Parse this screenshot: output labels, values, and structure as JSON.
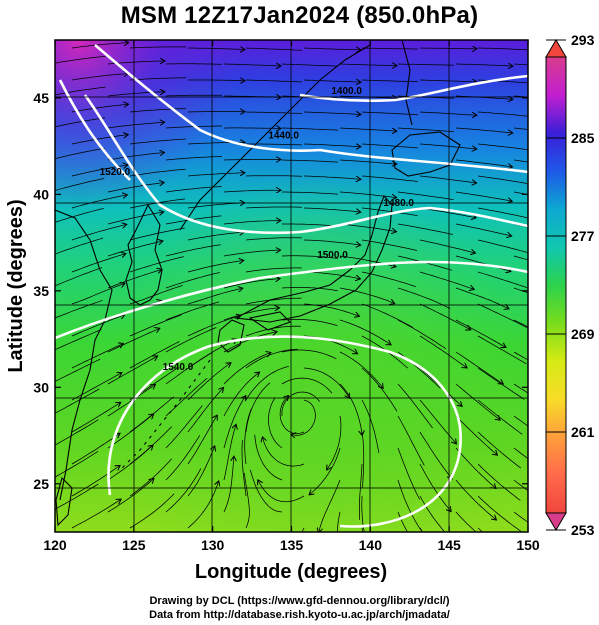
{
  "title": "MSM 12Z17Jan2024 (850.0hPa)",
  "map": {
    "x_axis": {
      "label": "Longitude (degrees)",
      "range": [
        120,
        150
      ],
      "ticks": [
        "120",
        "125",
        "130",
        "135",
        "140",
        "145",
        "150"
      ]
    },
    "y_axis": {
      "label": "Latitude  (degrees)",
      "range": [
        22.5,
        48
      ],
      "ticks": [
        "25",
        "30",
        "35",
        "40",
        "45"
      ]
    },
    "contours": [
      {
        "label": "1400.0",
        "lon": 138.5,
        "lat": 45.4
      },
      {
        "label": "1440.0",
        "lon": 134.5,
        "lat": 43.1
      },
      {
        "label": "1480.0",
        "lon": 141.8,
        "lat": 39.6
      },
      {
        "label": "1500.0",
        "lon": 137.6,
        "lat": 36.9
      },
      {
        "label": "1520.0",
        "lon": 123.8,
        "lat": 41.2
      },
      {
        "label": "1540.0",
        "lon": 127.8,
        "lat": 31.1
      }
    ],
    "low_center": {
      "lon": 135.7,
      "lat": 29.5
    },
    "colorbar": {
      "ticks": [
        "293",
        "285",
        "277",
        "269",
        "261",
        "253"
      ],
      "min": 253,
      "max": 293,
      "colors": [
        "#d83d8c",
        "#c21fd0",
        "#3a1fd8",
        "#1e58e8",
        "#0ea8d2",
        "#10c6b0",
        "#2cd24c",
        "#78dc1c",
        "#d6ea14",
        "#f8dc28",
        "#ff9e3c",
        "#ff6a4a",
        "#f0463e"
      ]
    }
  },
  "footer": {
    "line1": "Drawing by DCL (https://www.gfd-dennou.org/library/dcl/)",
    "line2": "Data from http://database.rish.kyoto-u.ac.jp/arch/jmadata/"
  }
}
